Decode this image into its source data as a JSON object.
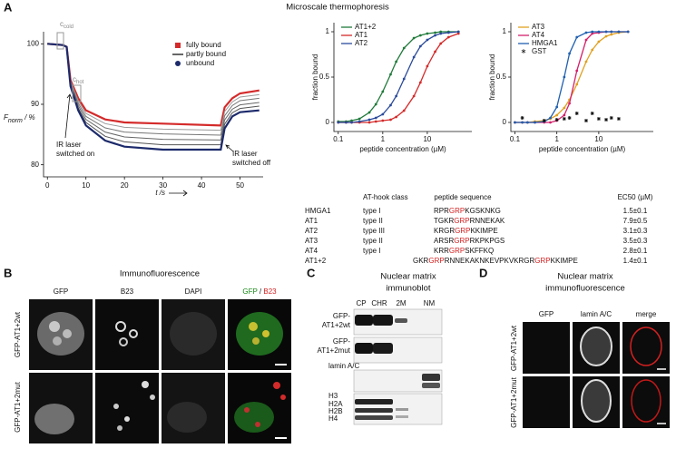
{
  "panel_a": {
    "label": "A",
    "title": "Microscale thermophoresis",
    "mst": {
      "type": "line",
      "x": [
        0,
        4,
        5,
        6,
        8,
        10,
        15,
        20,
        30,
        45,
        46,
        48,
        50,
        55
      ],
      "series": [
        {
          "color": "#d42a2a",
          "values": [
            100,
            99.8,
            99.5,
            94,
            91,
            89,
            87.5,
            87,
            86.8,
            86.5,
            89.5,
            91,
            91.8,
            92.3
          ]
        },
        {
          "color": "#9a9a9a",
          "values": [
            100,
            99.8,
            99.5,
            93.8,
            90.6,
            88.5,
            86.8,
            86.2,
            85.9,
            85.7,
            88.8,
            90.4,
            91.2,
            91.6
          ]
        },
        {
          "color": "#777777",
          "values": [
            100,
            99.8,
            99.5,
            93.6,
            90.2,
            88,
            86.1,
            85.4,
            85.1,
            84.9,
            88.1,
            89.8,
            90.6,
            91
          ]
        },
        {
          "color": "#666666",
          "values": [
            100,
            99.8,
            99.5,
            93.4,
            89.8,
            87.5,
            85.4,
            84.6,
            84.2,
            84.1,
            87.4,
            89.2,
            89.9,
            90.3
          ]
        },
        {
          "color": "#555555",
          "values": [
            100,
            99.8,
            99.5,
            93.2,
            89.4,
            87,
            84.7,
            83.8,
            83.3,
            83.3,
            86.7,
            88.6,
            89.3,
            89.7
          ]
        },
        {
          "color": "#1c2a6b",
          "values": [
            100,
            99.8,
            99.5,
            93,
            89,
            86.5,
            84,
            83,
            82.5,
            82.5,
            86,
            88,
            88.7,
            89
          ]
        }
      ],
      "legend": [
        {
          "label": "fully bound",
          "color": "#d42a2a",
          "marker": "square"
        },
        {
          "label": "partly bound",
          "color": "#333333",
          "marker": "line"
        },
        {
          "label": "unbound",
          "color": "#1c2a6b",
          "marker": "circle"
        }
      ],
      "xlim": [
        -1,
        56
      ],
      "xticks": [
        0,
        10,
        20,
        30,
        40,
        50
      ],
      "ylim": [
        78,
        102
      ],
      "yticks": [
        80,
        90,
        100
      ],
      "x_label": "t /s",
      "y_label": {
        "main": "F",
        "sub": "norm",
        "unit": " / %"
      },
      "annotations": {
        "c_cold": {
          "main": "c",
          "sub": "cold"
        },
        "c_hot": {
          "main": "c",
          "sub": "hot"
        },
        "ir_on": [
          "IR laser",
          "switched on"
        ],
        "ir_off": [
          "IR laser",
          "switched off"
        ]
      }
    },
    "binding": [
      {
        "type": "line",
        "log_x": true,
        "legend": "top-left",
        "x": [
          0.1,
          0.15,
          0.2,
          0.3,
          0.5,
          0.7,
          1,
          1.5,
          2,
          3,
          5,
          7,
          10,
          15,
          20,
          30,
          50
        ],
        "series": [
          {
            "name": "AT1+2",
            "color": "#1f7a3a",
            "marker": "circle",
            "values": [
              0.01,
              0.01,
              0.02,
              0.04,
              0.11,
              0.2,
              0.34,
              0.53,
              0.67,
              0.82,
              0.93,
              0.96,
              0.98,
              0.99,
              1,
              1,
              1
            ]
          },
          {
            "name": "AT1",
            "color": "#d42a2a",
            "marker": "circle",
            "values": [
              0,
              0,
              0,
              0,
              0,
              0.01,
              0.02,
              0.03,
              0.06,
              0.13,
              0.29,
              0.44,
              0.62,
              0.78,
              0.87,
              0.94,
              0.98
            ]
          },
          {
            "name": "AT2",
            "color": "#2a4a9a",
            "marker": "circle",
            "values": [
              0,
              0,
              0,
              0.01,
              0.03,
              0.05,
              0.09,
              0.19,
              0.29,
              0.48,
              0.72,
              0.84,
              0.91,
              0.96,
              0.98,
              0.99,
              1
            ]
          }
        ],
        "xlim": [
          0.08,
          100
        ],
        "xticks": [
          0.1,
          1,
          10
        ],
        "ylim": [
          -0.1,
          1.1
        ],
        "yticks": [
          0,
          0.5,
          1
        ],
        "x_label": "peptide concentration (µM)",
        "y_label": "fraction bound"
      },
      {
        "type": "line",
        "log_x": true,
        "legend": "top-left",
        "x": [
          0.1,
          0.15,
          0.2,
          0.3,
          0.5,
          0.7,
          1,
          1.5,
          2,
          3,
          5,
          7,
          10,
          15,
          20,
          30,
          50
        ],
        "series": [
          {
            "name": "AT3",
            "color": "#e0a020",
            "marker": "circle",
            "values": [
              0,
              0,
              0,
              0.01,
              0.02,
              0.04,
              0.08,
              0.16,
              0.25,
              0.42,
              0.67,
              0.8,
              0.89,
              0.95,
              0.97,
              0.99,
              1
            ]
          },
          {
            "name": "AT4",
            "color": "#d4206a",
            "marker": "circle",
            "values": [
              0,
              0,
              0,
              0,
              0,
              0,
              0.02,
              0.08,
              0.21,
              0.57,
              0.91,
              0.98,
              0.99,
              1,
              1,
              1,
              1
            ]
          },
          {
            "name": "HMGA1",
            "color": "#1f5fb0",
            "marker": "circle",
            "values": [
              0,
              0,
              0,
              0,
              0.01,
              0.05,
              0.17,
              0.5,
              0.76,
              0.94,
              0.99,
              1,
              1,
              1,
              1,
              1,
              1
            ]
          },
          {
            "name": "GST",
            "color": "#111111",
            "marker": "star",
            "values": [
              null,
              0.05,
              null,
              null,
              0.02,
              null,
              0.03,
              0.04,
              0.05,
              0.1,
              0.02,
              0.1,
              0.04,
              0.03,
              0.05,
              0.04,
              null
            ]
          }
        ],
        "xlim": [
          0.08,
          200
        ],
        "xticks": [
          0.1,
          1,
          10
        ],
        "ylim": [
          -0.1,
          1.1
        ],
        "yticks": [
          0,
          0.5,
          1
        ],
        "x_label": "peptide concentration (µM)",
        "y_label": "fraction bound"
      }
    ],
    "table": {
      "header": [
        "AT-hook class",
        "peptide sequence",
        "EC50 (µM)"
      ],
      "rows": [
        {
          "name": "HMGA1",
          "class": "type I",
          "sequence": [
            "RPR",
            "GRP",
            "KGSKNKG"
          ],
          "ec50": "1.5±0.1"
        },
        {
          "name": "AT1",
          "class": "type II",
          "sequence": [
            "TGKR",
            "GRP",
            "RNNEKAK"
          ],
          "ec50": "7.9±0.5"
        },
        {
          "name": "AT2",
          "class": "type III",
          "sequence": [
            "KRGR",
            "GRP",
            "KKIMPE"
          ],
          "ec50": "3.1±0.3"
        },
        {
          "name": "AT3",
          "class": "type II",
          "sequence": [
            "ARSR",
            "GRP",
            "RKPKPGS"
          ],
          "ec50": "3.5±0.3"
        },
        {
          "name": "AT4",
          "class": "type I",
          "sequence": [
            "KRR",
            "GRP",
            "SKFFKQ"
          ],
          "ec50": "2.8±0.1"
        },
        {
          "name": "AT1+2",
          "class": "",
          "sequence": [
            "GKR",
            "GRP",
            "RNNEKAKNKEVPKVKRGR",
            "GRP",
            "KKIMPE"
          ],
          "ec50": "1.4±0.1"
        }
      ]
    }
  },
  "panel_b": {
    "label": "B",
    "title": "Immunofluorescence",
    "columns": [
      "GFP",
      "B23",
      "DAPI"
    ],
    "merge": {
      "a": "GFP",
      "sep": "/",
      "b": "B23"
    },
    "rows": [
      "GFP-AT1+2wt",
      "GFP-AT1+2mut"
    ]
  },
  "panel_c": {
    "label": "C",
    "title": [
      "Nuclear matrix",
      "immunoblot"
    ],
    "columns": [
      "CP",
      "CHR",
      "2M",
      "NM"
    ],
    "rows": [
      [
        "GFP-",
        "AT1+2wt"
      ],
      [
        "GFP-",
        "AT1+2mut"
      ]
    ],
    "lamin": "lamin A/C",
    "histones": [
      "H3",
      "H2A",
      "H2B",
      "H4"
    ]
  },
  "panel_d": {
    "label": "D",
    "title": [
      "Nuclear matrix",
      "immunofluorescence"
    ],
    "columns": [
      "GFP",
      "lamin A/C",
      "merge"
    ],
    "rows": [
      "GFP-AT1+2wt",
      "GFP-AT1+2mut"
    ]
  }
}
